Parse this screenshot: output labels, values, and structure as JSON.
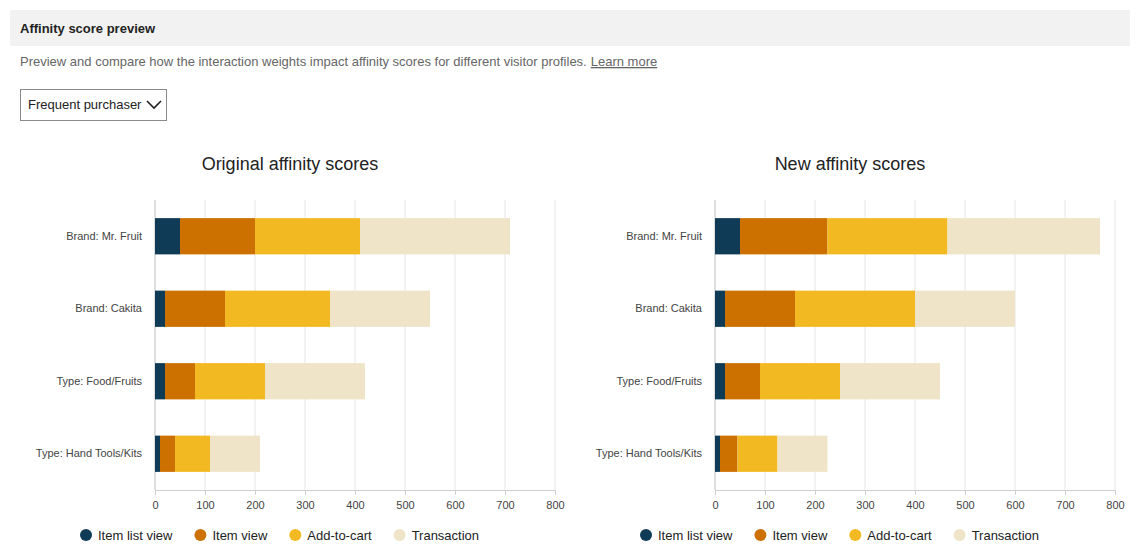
{
  "panel": {
    "title": "Affinity score preview",
    "description": "Preview and compare how the interaction weights impact affinity scores for different visitor profiles.",
    "link": "Learn more",
    "dropdown": "Frequent purchaser"
  },
  "chart_data": [
    {
      "type": "bar",
      "title": "Original affinity scores",
      "orientation": "horizontal",
      "stacked": true,
      "categories": [
        "Brand: Mr. Fruit",
        "Brand: Cakita",
        "Type: Food/Fruits",
        "Type: Hand Tools/Kits"
      ],
      "series": [
        {
          "name": "Item list view",
          "color": "#0f3b57",
          "values": [
            50,
            20,
            20,
            10
          ]
        },
        {
          "name": "Item view",
          "color": "#cc7000",
          "values": [
            150,
            120,
            60,
            30
          ]
        },
        {
          "name": "Add-to-cart",
          "color": "#f3b922",
          "values": [
            210,
            210,
            140,
            70
          ]
        },
        {
          "name": "Transaction",
          "color": "#efe3c8",
          "values": [
            300,
            200,
            200,
            100
          ]
        }
      ],
      "xlim": [
        0,
        800
      ],
      "xticks": [
        0,
        100,
        200,
        300,
        400,
        500,
        600,
        700,
        800
      ],
      "grid": true,
      "legend": "bottom"
    },
    {
      "type": "bar",
      "title": "New affinity scores",
      "orientation": "horizontal",
      "stacked": true,
      "categories": [
        "Brand: Mr. Fruit",
        "Brand: Cakita",
        "Type: Food/Fruits",
        "Type: Hand Tools/Kits"
      ],
      "series": [
        {
          "name": "Item list view",
          "color": "#0f3b57",
          "values": [
            50,
            20,
            20,
            10
          ]
        },
        {
          "name": "Item view",
          "color": "#cc7000",
          "values": [
            175,
            140,
            70,
            35
          ]
        },
        {
          "name": "Add-to-cart",
          "color": "#f3b922",
          "values": [
            240,
            240,
            160,
            80
          ]
        },
        {
          "name": "Transaction",
          "color": "#efe3c8",
          "values": [
            305,
            200,
            200,
            100
          ]
        }
      ],
      "xlim": [
        0,
        800
      ],
      "xticks": [
        0,
        100,
        200,
        300,
        400,
        500,
        600,
        700,
        800
      ],
      "grid": true,
      "legend": "bottom"
    }
  ]
}
